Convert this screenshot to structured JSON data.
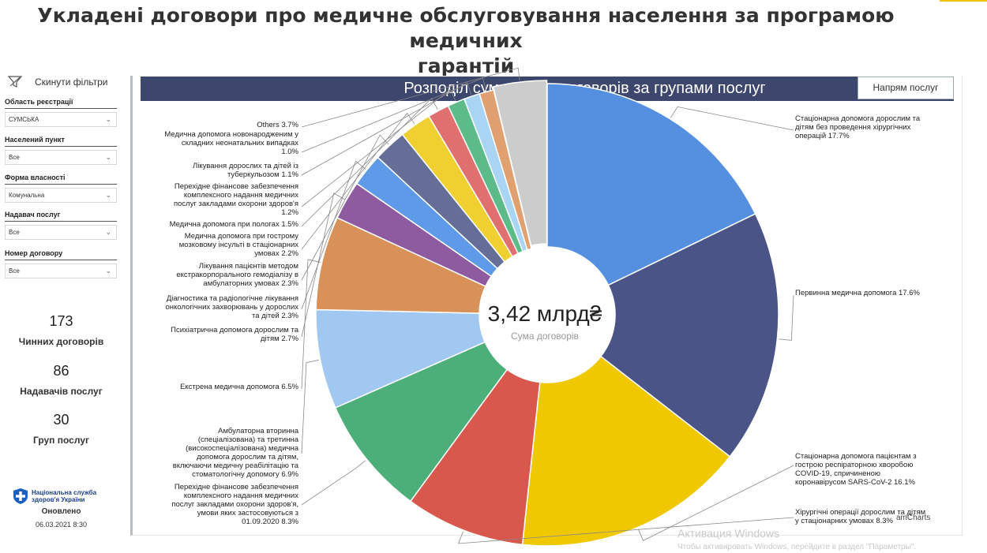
{
  "page": {
    "title_line1": "Укладені договори про медичне обслуговування населення за програмою медичних",
    "title_line2": "гарантій"
  },
  "sidebar": {
    "reset_label": "Скинути фільтри",
    "filters": [
      {
        "label": "Область реєстрації",
        "value": "СУМСЬКА"
      },
      {
        "label": "Населений пункт",
        "value": "Все"
      },
      {
        "label": "Форма власності",
        "value": "Комунальна"
      },
      {
        "label": "Надавач послуг",
        "value": "Все"
      },
      {
        "label": "Номер договору",
        "value": "Все"
      }
    ],
    "kpis": [
      {
        "value": "173",
        "label": "Чинних договорів"
      },
      {
        "value": "86",
        "label": "Надавачів послуг"
      },
      {
        "value": "30",
        "label": "Груп послуг"
      }
    ],
    "brand_line1": "Національна служба",
    "brand_line2": "здоров'я України",
    "updated_label": "Оновлено",
    "updated_date": "06.03.2021 8:30"
  },
  "chart": {
    "header": "Розподіл сум чинних договорів за групами послуг",
    "direction_button": "Напрям послуг",
    "center_value": "3,42 млрд₴",
    "center_label": "Сума договорів",
    "credit": "amCharts"
  },
  "chart_data": {
    "type": "pie",
    "title": "Розподіл сум чинних договорів за групами послуг",
    "total": "3,42 млрд₴",
    "slices": [
      {
        "label": "Стаціонарна допомога дорослим та дітям без проведення хірургічних операцій",
        "value": 17.7,
        "color": "#5590e0",
        "label_lines": [
          "Стаціонарна допомога дорослим та",
          "дітям без проведення хірургічних",
          "операцій 17.7%"
        ]
      },
      {
        "label": "Первинна медична допомога",
        "value": 17.6,
        "color": "#4a5487",
        "label_lines": [
          "Первинна медична допомога 17.6%"
        ]
      },
      {
        "label": "Стаціонарна допомога пацієнтам з гострою респіраторною хворобою COVID-19, спричиненою коронавірусом SARS-CoV-2",
        "value": 16.1,
        "color": "#f0c800",
        "label_lines": [
          "Стаціонарна допомога пацієнтам з",
          "гострою респіраторною хворобою",
          "COVID-19, спричиненою",
          "коронавірусом SARS-CoV-2 16.1%"
        ]
      },
      {
        "label": "Хірургічні операції дорослим та дітям у стаціонарних умовах",
        "value": 8.3,
        "color": "#d9584e",
        "label_lines": [
          "Хірургічні операції дорослим та дітям",
          "у стаціонарних умовах 8.3%"
        ]
      },
      {
        "label": "Перехідне фінансове забезпечення комплексного надання медичних послуг закладами охорони здоров'я, умови яких застосовуються з 01.09.2020",
        "value": 8.3,
        "color": "#4caf7a",
        "label_lines": [
          "Перехідне фінансове забезпечення",
          "комплексного надання медичних",
          "послуг закладами охорони здоров'я,",
          "умови яких застосовуються з",
          "01.09.2020 8.3%"
        ]
      },
      {
        "label": "Амбулаторна вторинна (спеціалізована) та третинна (високоспеціалізована) медична допомога дорослим та дітям, включаючи медичну реабілітацію та стоматологічну допомогу",
        "value": 6.9,
        "color": "#a0c8f0",
        "label_lines": [
          "Амбулаторна вторинна",
          "(спеціалізована) та третинна",
          "(високоспеціалізована) медична",
          "допомога дорослим та дітям,",
          "включаючи медичну реабілітацію та",
          "стоматологічну допомогу 6.9%"
        ]
      },
      {
        "label": "Екстрена медична допомога",
        "value": 6.5,
        "color": "#d9915a",
        "label_lines": [
          "Екстрена медична допомога 6.5%"
        ]
      },
      {
        "label": "Психіатрична допомога дорослим та дітям",
        "value": 2.7,
        "color": "#8e5aa0",
        "label_lines": [
          "Психіатрична допомога дорослим та",
          "дітям 2.7%"
        ]
      },
      {
        "label": "Діагностика та радіологічне лікування онкологічних захворювань у дорослих та дітей",
        "value": 2.3,
        "color": "#5e9ae8",
        "label_lines": [
          "Діагностика та радіологічне лікування",
          "онкологічних захворювань у дорослих",
          "та дітей 2.3%"
        ]
      },
      {
        "label": "Лікування пацієнтів методом екстракорпорального гемодіалізу в амбулаторних умовах",
        "value": 2.3,
        "color": "#646e96",
        "label_lines": [
          "Лікування пацієнтів методом",
          "екстракорпорального гемодіалізу в",
          "амбулаторних умовах 2.3%"
        ]
      },
      {
        "label": "Медична допомога при гострому мозковому інсульті в стаціонарних умовах",
        "value": 2.2,
        "color": "#f0d030",
        "label_lines": [
          "Медична допомога при гострому",
          "мозковому інсульті в стаціонарних",
          "умовах 2.2%"
        ]
      },
      {
        "label": "Медична допомога при пологах",
        "value": 1.5,
        "color": "#e07070",
        "label_lines": [
          "Медична допомога при пологах 1.5%"
        ]
      },
      {
        "label": "Перехідне фінансове забезпечення комплексного надання медичних послуг закладами охорони здоров'я",
        "value": 1.2,
        "color": "#5cbb88",
        "label_lines": [
          "Перехідне фінансове забезпечення",
          "комплексного надання медичних",
          "послуг закладами охорони здоров'я",
          "1.2%"
        ]
      },
      {
        "label": "Лікування дорослих та дітей із туберкульозом",
        "value": 1.1,
        "color": "#aad4f4",
        "label_lines": [
          "Лікування дорослих та дітей із",
          "туберкульозом 1.1%"
        ]
      },
      {
        "label": "Медична допомога новонародженим у складних неонатальних випадках",
        "value": 1.0,
        "color": "#e0a070",
        "label_lines": [
          "Медична допомога новонародженим у",
          "складних неонатальних випадках",
          "1.0%"
        ]
      },
      {
        "label": "Others",
        "value": 3.7,
        "color": "#cccccc",
        "pulled_out": true,
        "label_lines": [
          "Others 3.7%"
        ]
      }
    ]
  },
  "watermark": {
    "line1": "Активация Windows",
    "line2": "Чтобы активировать Windows, перейдите в раздел \"Параметры\"."
  }
}
